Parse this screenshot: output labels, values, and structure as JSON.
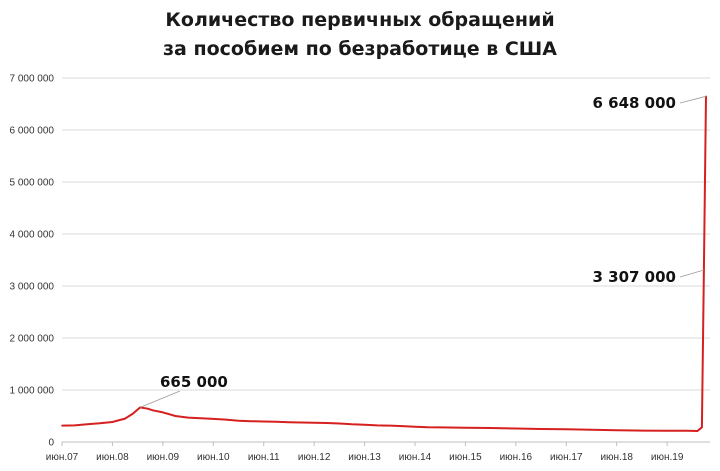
{
  "chart_data": {
    "type": "line",
    "title": [
      "Количество первичных обращений",
      "за пособием по безработице в США"
    ],
    "xlabel": "",
    "ylabel": "",
    "ylim": [
      0,
      7000000
    ],
    "yticks": [
      0,
      1000000,
      2000000,
      3000000,
      4000000,
      5000000,
      6000000,
      7000000
    ],
    "ytick_labels": [
      "0",
      "1 000 000",
      "2 000 000",
      "3 000 000",
      "4 000 000",
      "5 000 000",
      "6 000 000",
      "7 000 000"
    ],
    "xlim": [
      2007.5,
      2020.35
    ],
    "xticks": [
      2007.5,
      2008.5,
      2009.5,
      2010.5,
      2011.5,
      2012.5,
      2013.5,
      2014.5,
      2015.5,
      2016.5,
      2017.5,
      2018.5,
      2019.5
    ],
    "xtick_labels": [
      "июн.07",
      "июн.08",
      "июн.09",
      "июн.10",
      "июн.11",
      "июн.12",
      "июн.13",
      "июн.14",
      "июн.15",
      "июн.16",
      "июн.17",
      "июн.18",
      "июн.19"
    ],
    "grid": true,
    "legend": "none",
    "series": [
      {
        "color": "#d62020",
        "x": [
          2007.5,
          2007.75,
          2008.0,
          2008.25,
          2008.5,
          2008.75,
          2008.9,
          2009.05,
          2009.2,
          2009.3,
          2009.5,
          2009.75,
          2010.0,
          2010.25,
          2010.5,
          2010.75,
          2011.0,
          2011.25,
          2011.5,
          2011.75,
          2012.0,
          2012.25,
          2012.5,
          2012.75,
          2013.0,
          2013.25,
          2013.5,
          2013.75,
          2014.0,
          2014.25,
          2014.5,
          2014.75,
          2015.0,
          2015.5,
          2016.0,
          2016.5,
          2017.0,
          2017.5,
          2018.0,
          2018.5,
          2019.0,
          2019.5,
          2019.9,
          2020.1,
          2020.19,
          2020.23,
          2020.27
        ],
        "values": [
          315000,
          320000,
          340000,
          360000,
          385000,
          450000,
          540000,
          665000,
          640000,
          610000,
          570000,
          500000,
          470000,
          455000,
          445000,
          430000,
          410000,
          400000,
          395000,
          390000,
          380000,
          375000,
          370000,
          365000,
          355000,
          340000,
          330000,
          320000,
          315000,
          305000,
          295000,
          285000,
          280000,
          275000,
          270000,
          260000,
          250000,
          245000,
          235000,
          225000,
          220000,
          218000,
          215000,
          212000,
          282000,
          3307000,
          6648000
        ]
      }
    ],
    "annotations": [
      {
        "text": "665 000",
        "x": 2009.05,
        "y": 665000
      },
      {
        "text": "3 307 000",
        "x": 2020.23,
        "y": 3307000
      },
      {
        "text": "6 648 000",
        "x": 2020.27,
        "y": 6648000
      }
    ]
  }
}
